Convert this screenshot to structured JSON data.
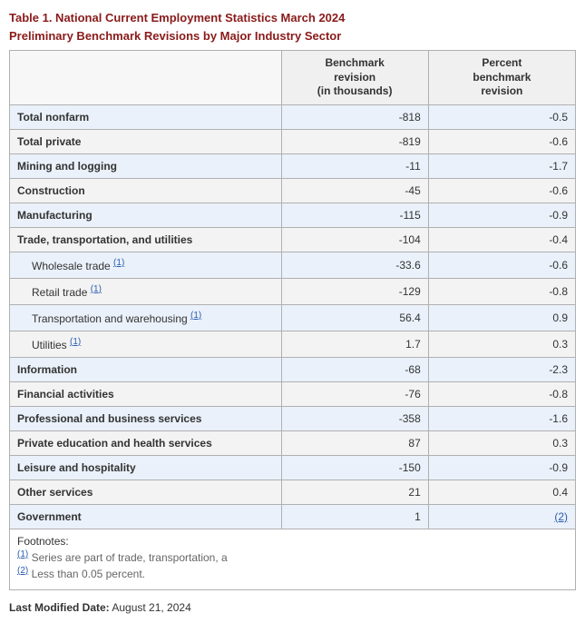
{
  "title_line1": "Table 1. National Current Employment Statistics March 2024",
  "title_line2": "Preliminary Benchmark Revisions by Major Industry Sector",
  "table": {
    "columns": [
      "",
      "Benchmark\nrevision\n(in thousands)",
      "Percent\nbenchmark\nrevision"
    ],
    "col_align": [
      "left",
      "right",
      "right"
    ],
    "col_widths_pct": [
      48,
      26,
      26
    ],
    "header_bg": "#f0f0f0",
    "row_even_bg": "#eaf1fa",
    "row_odd_bg": "#f3f3f3",
    "border_color": "#b0b0b0",
    "rows": [
      {
        "label": "Total nonfarm",
        "indent": false,
        "fn": null,
        "v1": "-818",
        "v2": "-0.5"
      },
      {
        "label": "Total private",
        "indent": false,
        "fn": null,
        "v1": "-819",
        "v2": "-0.6"
      },
      {
        "label": "Mining and logging",
        "indent": false,
        "fn": null,
        "v1": "-11",
        "v2": "-1.7"
      },
      {
        "label": "Construction",
        "indent": false,
        "fn": null,
        "v1": "-45",
        "v2": "-0.6"
      },
      {
        "label": "Manufacturing",
        "indent": false,
        "fn": null,
        "v1": "-115",
        "v2": "-0.9"
      },
      {
        "label": "Trade, transportation, and utilities",
        "indent": false,
        "fn": null,
        "v1": "-104",
        "v2": "-0.4"
      },
      {
        "label": "Wholesale trade",
        "indent": true,
        "fn": "(1)",
        "v1": "-33.6",
        "v2": "-0.6"
      },
      {
        "label": "Retail trade",
        "indent": true,
        "fn": "(1)",
        "v1": "-129",
        "v2": "-0.8"
      },
      {
        "label": "Transportation and warehousing",
        "indent": true,
        "fn": "(1)",
        "v1": "56.4",
        "v2": "0.9"
      },
      {
        "label": "Utilities",
        "indent": true,
        "fn": "(1)",
        "v1": "1.7",
        "v2": "0.3"
      },
      {
        "label": "Information",
        "indent": false,
        "fn": null,
        "v1": "-68",
        "v2": "-2.3"
      },
      {
        "label": "Financial activities",
        "indent": false,
        "fn": null,
        "v1": "-76",
        "v2": "-0.8"
      },
      {
        "label": "Professional and business services",
        "indent": false,
        "fn": null,
        "v1": "-358",
        "v2": "-1.6"
      },
      {
        "label": "Private education and health services",
        "indent": false,
        "fn": null,
        "v1": "87",
        "v2": "0.3"
      },
      {
        "label": "Leisure and hospitality",
        "indent": false,
        "fn": null,
        "v1": "-150",
        "v2": "-0.9"
      },
      {
        "label": "Other services",
        "indent": false,
        "fn": null,
        "v1": "21",
        "v2": "0.4"
      },
      {
        "label": "Government",
        "indent": false,
        "fn": null,
        "v1": "1",
        "v2_link": "(2)"
      }
    ]
  },
  "footnotes": {
    "label": "Footnotes:",
    "items": [
      {
        "ref": "(1)",
        "text": "Series are part of trade, transportation, a"
      },
      {
        "ref": "(2)",
        "text": "Less than 0.05 percent."
      }
    ]
  },
  "last_modified_label": "Last Modified Date:",
  "last_modified_value": "August 21, 2024",
  "colors": {
    "title": "#8a1a1a",
    "link": "#2a5db0",
    "text": "#333333",
    "muted": "#666666"
  }
}
